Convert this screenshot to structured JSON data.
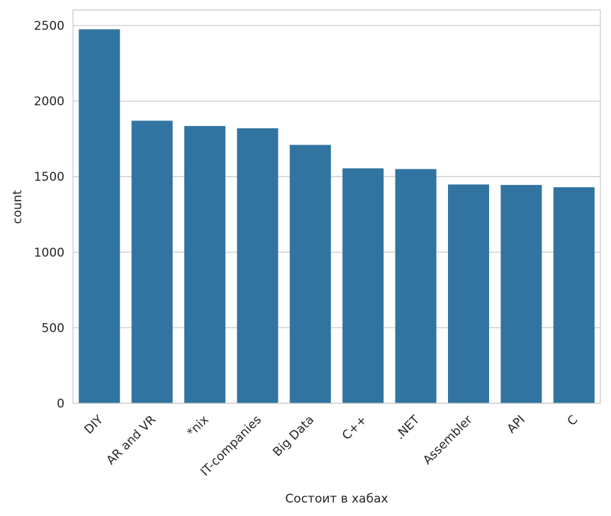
{
  "chart_data": {
    "type": "bar",
    "title": "",
    "xlabel": "Состоит в хабах",
    "ylabel": "count",
    "categories": [
      "DIY",
      "AR and VR",
      "*nix",
      "IT-companies",
      "Big Data",
      "C++",
      ".NET",
      "Assembler",
      "API",
      "C"
    ],
    "values": [
      2475,
      1870,
      1835,
      1820,
      1710,
      1555,
      1550,
      1448,
      1445,
      1430
    ],
    "ylim": [
      0,
      2600
    ],
    "yticks": [
      0,
      500,
      1000,
      1500,
      2000,
      2500
    ],
    "grid": "horizontal",
    "bar_color": "#3274a1"
  }
}
